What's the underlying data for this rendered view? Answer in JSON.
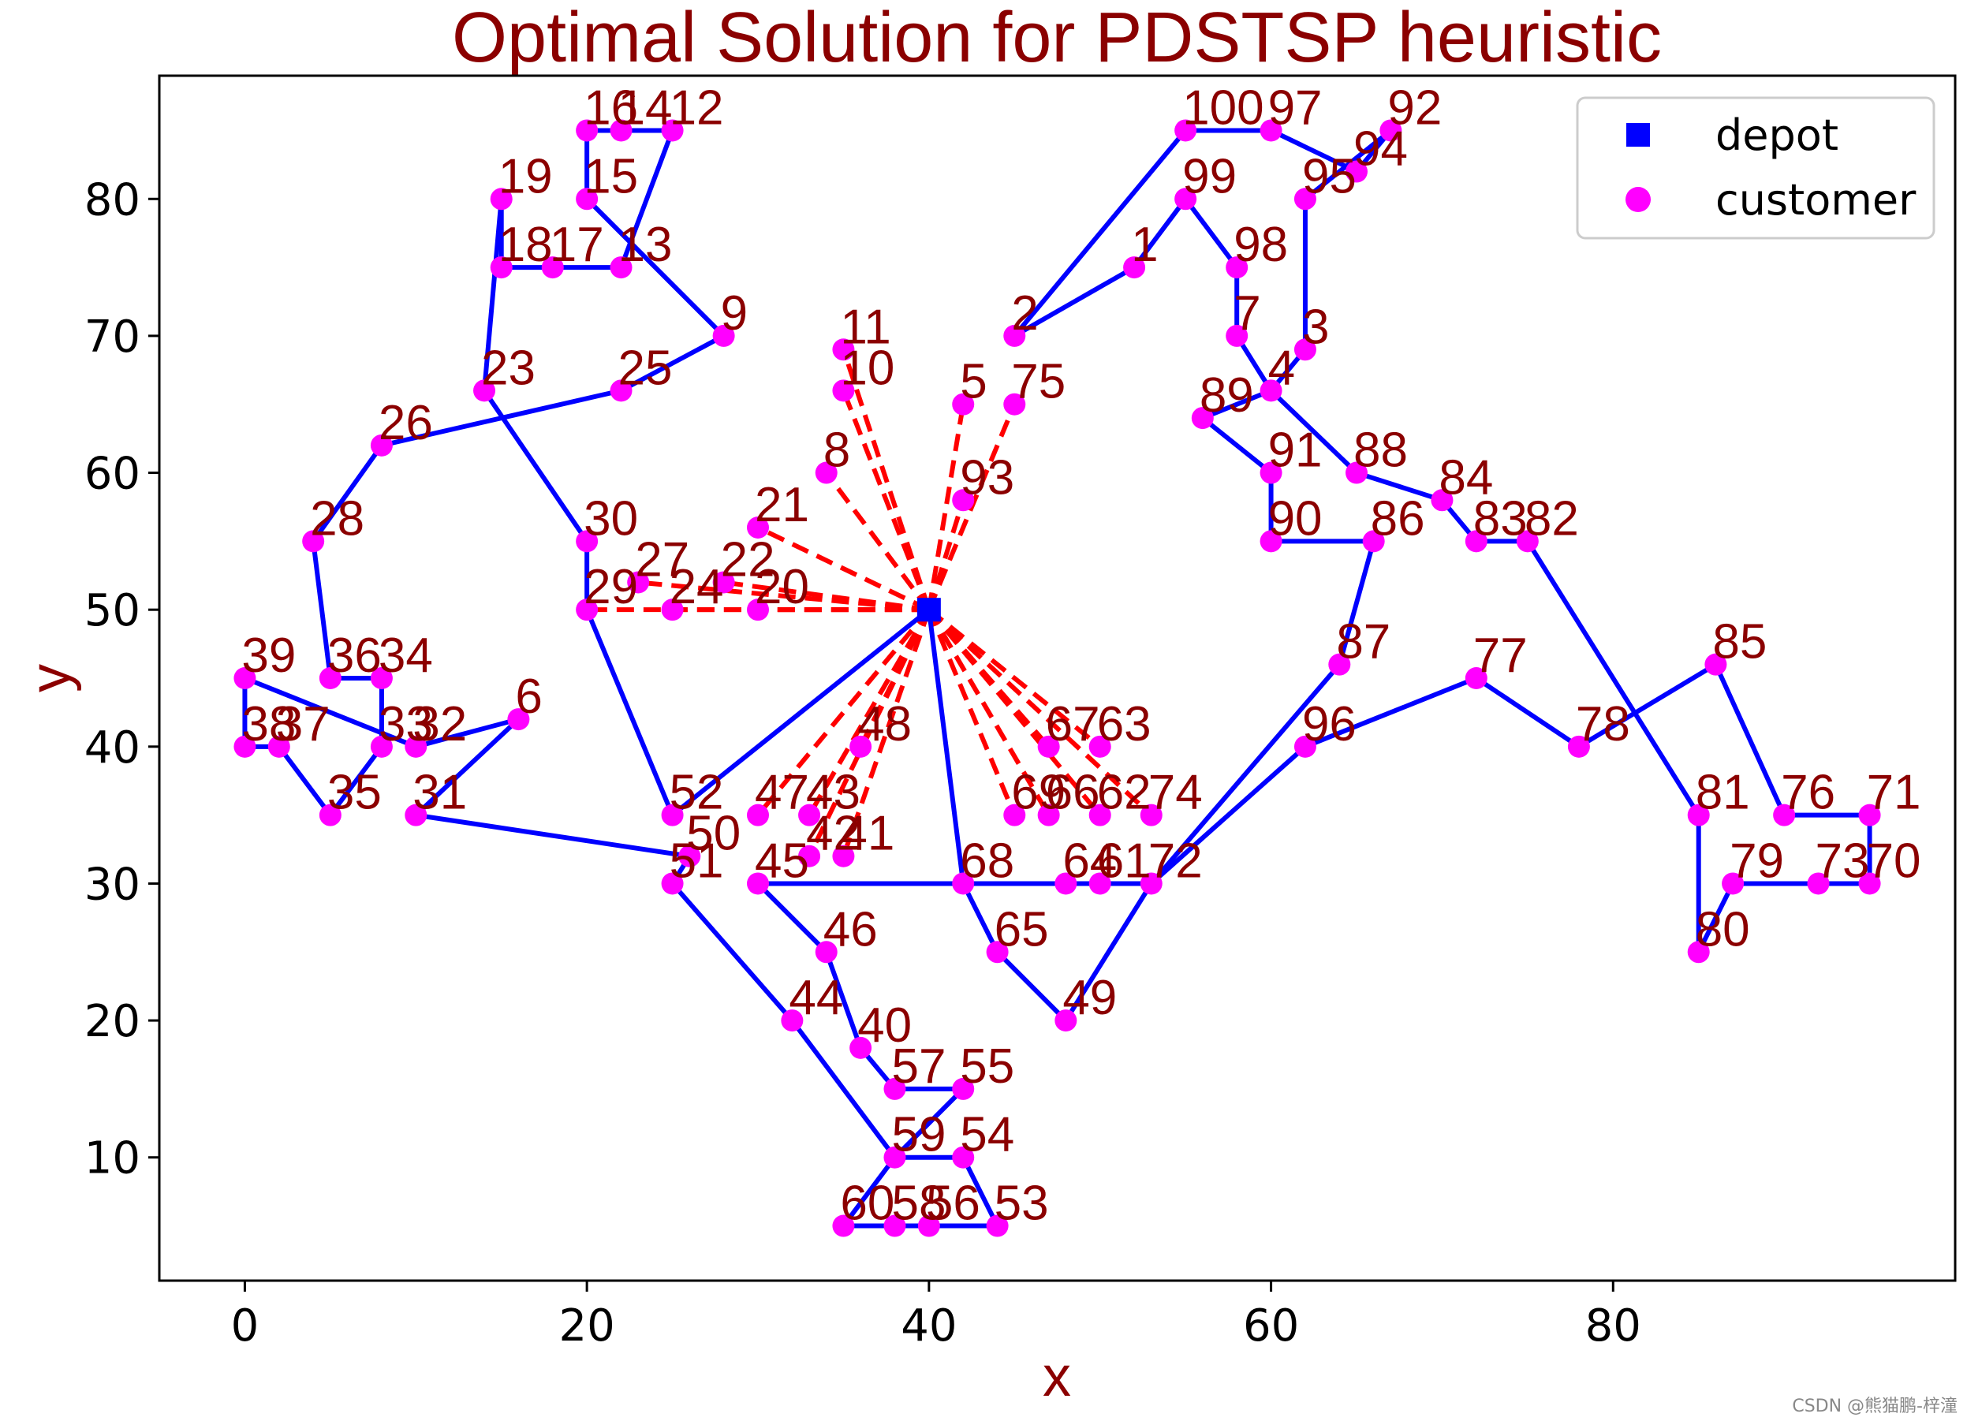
{
  "chart_data": {
    "type": "scatter",
    "title": "Optimal Solution for PDSTSP heuristic",
    "xlabel": "x",
    "ylabel": "y",
    "xlim": [
      -5,
      100
    ],
    "ylim": [
      1,
      89
    ],
    "xticks": [
      0,
      20,
      40,
      60,
      80
    ],
    "yticks": [
      10,
      20,
      30,
      40,
      50,
      60,
      70,
      80
    ],
    "grid": false,
    "legend_position": "top-right",
    "legend": [
      {
        "name": "depot",
        "marker": "square",
        "color": "#0000ff"
      },
      {
        "name": "customer",
        "marker": "circle",
        "color": "#ff00ff"
      }
    ],
    "colors": {
      "route": "#0000ff",
      "drone": "#ff0000",
      "customer": "#ff00ff",
      "depot": "#0000ff",
      "label": "#8b0000"
    },
    "depot": {
      "x": 40,
      "y": 50
    },
    "customers": [
      {
        "id": "1",
        "x": 52,
        "y": 75
      },
      {
        "id": "2",
        "x": 45,
        "y": 70
      },
      {
        "id": "3",
        "x": 62,
        "y": 69
      },
      {
        "id": "4",
        "x": 60,
        "y": 66
      },
      {
        "id": "5",
        "x": 42,
        "y": 65
      },
      {
        "id": "6",
        "x": 16,
        "y": 42
      },
      {
        "id": "7",
        "x": 58,
        "y": 70
      },
      {
        "id": "8",
        "x": 34,
        "y": 60
      },
      {
        "id": "9",
        "x": 28,
        "y": 70
      },
      {
        "id": "10",
        "x": 35,
        "y": 66
      },
      {
        "id": "11",
        "x": 35,
        "y": 69
      },
      {
        "id": "12",
        "x": 25,
        "y": 85
      },
      {
        "id": "13",
        "x": 22,
        "y": 75
      },
      {
        "id": "14",
        "x": 22,
        "y": 85
      },
      {
        "id": "15",
        "x": 20,
        "y": 80
      },
      {
        "id": "16",
        "x": 20,
        "y": 85
      },
      {
        "id": "17",
        "x": 18,
        "y": 75
      },
      {
        "id": "18",
        "x": 15,
        "y": 75
      },
      {
        "id": "19",
        "x": 15,
        "y": 80
      },
      {
        "id": "20",
        "x": 30,
        "y": 50
      },
      {
        "id": "21",
        "x": 30,
        "y": 56
      },
      {
        "id": "22",
        "x": 28,
        "y": 52
      },
      {
        "id": "23",
        "x": 14,
        "y": 66
      },
      {
        "id": "24",
        "x": 25,
        "y": 50
      },
      {
        "id": "25",
        "x": 22,
        "y": 66
      },
      {
        "id": "26",
        "x": 8,
        "y": 62
      },
      {
        "id": "27",
        "x": 23,
        "y": 52
      },
      {
        "id": "28",
        "x": 4,
        "y": 55
      },
      {
        "id": "29",
        "x": 20,
        "y": 50
      },
      {
        "id": "30",
        "x": 20,
        "y": 55
      },
      {
        "id": "31",
        "x": 10,
        "y": 35
      },
      {
        "id": "32",
        "x": 10,
        "y": 40
      },
      {
        "id": "33",
        "x": 8,
        "y": 40
      },
      {
        "id": "34",
        "x": 8,
        "y": 45
      },
      {
        "id": "35",
        "x": 5,
        "y": 35
      },
      {
        "id": "36",
        "x": 5,
        "y": 45
      },
      {
        "id": "37",
        "x": 2,
        "y": 40
      },
      {
        "id": "38",
        "x": 0,
        "y": 40
      },
      {
        "id": "39",
        "x": 0,
        "y": 45
      },
      {
        "id": "40",
        "x": 36,
        "y": 18
      },
      {
        "id": "41",
        "x": 35,
        "y": 32
      },
      {
        "id": "42",
        "x": 33,
        "y": 32
      },
      {
        "id": "43",
        "x": 33,
        "y": 35
      },
      {
        "id": "44",
        "x": 32,
        "y": 20
      },
      {
        "id": "45",
        "x": 30,
        "y": 30
      },
      {
        "id": "46",
        "x": 34,
        "y": 25
      },
      {
        "id": "47",
        "x": 30,
        "y": 35
      },
      {
        "id": "48",
        "x": 36,
        "y": 40
      },
      {
        "id": "49",
        "x": 48,
        "y": 20
      },
      {
        "id": "50",
        "x": 26,
        "y": 32
      },
      {
        "id": "51",
        "x": 25,
        "y": 30
      },
      {
        "id": "52",
        "x": 25,
        "y": 35
      },
      {
        "id": "53",
        "x": 44,
        "y": 5
      },
      {
        "id": "54",
        "x": 42,
        "y": 10
      },
      {
        "id": "55",
        "x": 42,
        "y": 15
      },
      {
        "id": "56",
        "x": 40,
        "y": 5
      },
      {
        "id": "57",
        "x": 38,
        "y": 15
      },
      {
        "id": "58",
        "x": 38,
        "y": 5
      },
      {
        "id": "59",
        "x": 38,
        "y": 10
      },
      {
        "id": "60",
        "x": 35,
        "y": 5
      },
      {
        "id": "61",
        "x": 50,
        "y": 30
      },
      {
        "id": "62",
        "x": 50,
        "y": 35
      },
      {
        "id": "63",
        "x": 50,
        "y": 40
      },
      {
        "id": "64",
        "x": 48,
        "y": 30
      },
      {
        "id": "65",
        "x": 44,
        "y": 25
      },
      {
        "id": "66",
        "x": 47,
        "y": 35
      },
      {
        "id": "67",
        "x": 47,
        "y": 40
      },
      {
        "id": "68",
        "x": 42,
        "y": 30
      },
      {
        "id": "69",
        "x": 45,
        "y": 35
      },
      {
        "id": "70",
        "x": 95,
        "y": 30
      },
      {
        "id": "71",
        "x": 95,
        "y": 35
      },
      {
        "id": "72",
        "x": 53,
        "y": 30
      },
      {
        "id": "73",
        "x": 92,
        "y": 30
      },
      {
        "id": "74",
        "x": 53,
        "y": 35
      },
      {
        "id": "75",
        "x": 45,
        "y": 65
      },
      {
        "id": "76",
        "x": 90,
        "y": 35
      },
      {
        "id": "77",
        "x": 72,
        "y": 45
      },
      {
        "id": "78",
        "x": 78,
        "y": 40
      },
      {
        "id": "79",
        "x": 87,
        "y": 30
      },
      {
        "id": "80",
        "x": 85,
        "y": 25
      },
      {
        "id": "81",
        "x": 85,
        "y": 35
      },
      {
        "id": "82",
        "x": 75,
        "y": 55
      },
      {
        "id": "83",
        "x": 72,
        "y": 55
      },
      {
        "id": "84",
        "x": 70,
        "y": 58
      },
      {
        "id": "85",
        "x": 86,
        "y": 46
      },
      {
        "id": "86",
        "x": 66,
        "y": 55
      },
      {
        "id": "87",
        "x": 64,
        "y": 46
      },
      {
        "id": "88",
        "x": 65,
        "y": 60
      },
      {
        "id": "89",
        "x": 56,
        "y": 64
      },
      {
        "id": "90",
        "x": 60,
        "y": 55
      },
      {
        "id": "91",
        "x": 60,
        "y": 60
      },
      {
        "id": "92",
        "x": 67,
        "y": 85
      },
      {
        "id": "93",
        "x": 42,
        "y": 58
      },
      {
        "id": "94",
        "x": 65,
        "y": 82
      },
      {
        "id": "95",
        "x": 62,
        "y": 80
      },
      {
        "id": "96",
        "x": 62,
        "y": 40
      },
      {
        "id": "97",
        "x": 60,
        "y": 85
      },
      {
        "id": "99",
        "x": 55,
        "y": 80
      },
      {
        "id": "98",
        "x": 58,
        "y": 75
      },
      {
        "id": "100",
        "x": 55,
        "y": 85
      }
    ],
    "truck_route": [
      "0",
      "2",
      "1",
      "99",
      "98",
      "7",
      "3",
      "95",
      "94",
      "92",
      "97",
      "100",
      "2"
    ],
    "truck_route_segments": [
      [
        "0",
        "52"
      ],
      [
        "52",
        "29"
      ],
      [
        "29",
        "30"
      ],
      [
        "30",
        "23"
      ],
      [
        "23",
        "19"
      ],
      [
        "19",
        "18"
      ],
      [
        "18",
        "17"
      ],
      [
        "17",
        "13"
      ],
      [
        "13",
        "12"
      ],
      [
        "12",
        "14"
      ],
      [
        "14",
        "16"
      ],
      [
        "16",
        "15"
      ],
      [
        "15",
        "9"
      ],
      [
        "9",
        "25"
      ],
      [
        "25",
        "26"
      ],
      [
        "26",
        "28"
      ],
      [
        "28",
        "36"
      ],
      [
        "36",
        "34"
      ],
      [
        "34",
        "33"
      ],
      [
        "33",
        "35"
      ],
      [
        "35",
        "37"
      ],
      [
        "37",
        "38"
      ],
      [
        "38",
        "39"
      ],
      [
        "39",
        "32"
      ],
      [
        "32",
        "6"
      ],
      [
        "6",
        "31"
      ],
      [
        "31",
        "50"
      ],
      [
        "50",
        "51"
      ],
      [
        "51",
        "44"
      ],
      [
        "44",
        "59"
      ],
      [
        "59",
        "60"
      ],
      [
        "60",
        "58"
      ],
      [
        "58",
        "56"
      ],
      [
        "56",
        "53"
      ],
      [
        "53",
        "54"
      ],
      [
        "54",
        "59"
      ],
      [
        "59",
        "55"
      ],
      [
        "55",
        "57"
      ],
      [
        "57",
        "40"
      ],
      [
        "40",
        "46"
      ],
      [
        "46",
        "45"
      ],
      [
        "45",
        "68"
      ],
      [
        "68",
        "64"
      ],
      [
        "64",
        "61"
      ],
      [
        "61",
        "72"
      ],
      [
        "72",
        "87"
      ],
      [
        "87",
        "86"
      ],
      [
        "86",
        "90"
      ],
      [
        "90",
        "91"
      ],
      [
        "91",
        "89"
      ],
      [
        "89",
        "4"
      ],
      [
        "4",
        "88"
      ],
      [
        "88",
        "84"
      ],
      [
        "84",
        "83"
      ],
      [
        "83",
        "82"
      ],
      [
        "82",
        "81"
      ],
      [
        "81",
        "80"
      ],
      [
        "80",
        "79"
      ],
      [
        "79",
        "73"
      ],
      [
        "73",
        "70"
      ],
      [
        "70",
        "71"
      ],
      [
        "71",
        "76"
      ],
      [
        "76",
        "85"
      ],
      [
        "85",
        "78"
      ],
      [
        "78",
        "77"
      ],
      [
        "77",
        "96"
      ],
      [
        "96",
        "72"
      ],
      [
        "72",
        "49"
      ],
      [
        "49",
        "65"
      ],
      [
        "65",
        "68"
      ],
      [
        "68",
        "0"
      ],
      [
        "4",
        "7"
      ],
      [
        "7",
        "98"
      ],
      [
        "98",
        "99"
      ],
      [
        "99",
        "1"
      ],
      [
        "1",
        "2"
      ],
      [
        "2",
        "100"
      ],
      [
        "100",
        "97"
      ],
      [
        "97",
        "94"
      ],
      [
        "94",
        "92"
      ],
      [
        "92",
        "95"
      ],
      [
        "95",
        "3"
      ],
      [
        "3",
        "4"
      ]
    ],
    "drone_customers": [
      "11",
      "10",
      "8",
      "5",
      "75",
      "93",
      "21",
      "22",
      "27",
      "24",
      "20",
      "29",
      "47",
      "43",
      "42",
      "41",
      "48",
      "69",
      "66",
      "62",
      "74",
      "67",
      "63"
    ]
  },
  "watermark": "CSDN @熊猫鹏-梓潼"
}
